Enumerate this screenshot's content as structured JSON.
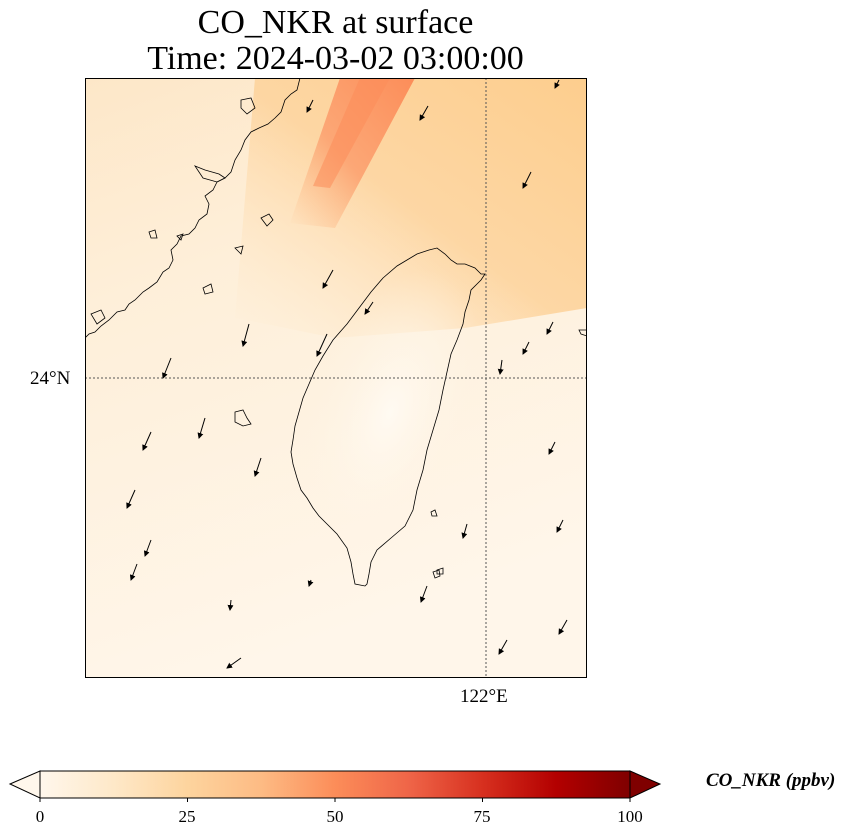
{
  "title": {
    "line1": "CO_NKR at surface",
    "line2": "Time: 2024-03-02 03:00:00"
  },
  "axes": {
    "lat_tick": "24°N",
    "lon_tick": "122°E"
  },
  "colorbar": {
    "label": "CO_NKR (ppbv)",
    "ticks": [
      "0",
      "25",
      "50",
      "75",
      "100"
    ],
    "min": 0,
    "max": 100,
    "colormap": "OrRd",
    "extend": "both"
  },
  "colors": {
    "background_low": "#fff7ec",
    "plume_high": "#fc8d59",
    "outline": "#000000"
  },
  "map": {
    "region": "Taiwan and Fujian coast",
    "features": [
      "coastlines",
      "gridlines",
      "wind-vectors",
      "CO plume"
    ]
  }
}
